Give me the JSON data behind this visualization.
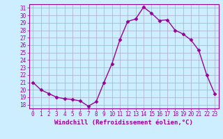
{
  "x": [
    0,
    1,
    2,
    3,
    4,
    5,
    6,
    7,
    8,
    9,
    10,
    11,
    12,
    13,
    14,
    15,
    16,
    17,
    18,
    19,
    20,
    21,
    22,
    23
  ],
  "y": [
    21,
    20,
    19.5,
    19,
    18.8,
    18.7,
    18.5,
    17.8,
    18.4,
    21,
    23.5,
    26.7,
    29.2,
    29.5,
    31.1,
    30.3,
    29.3,
    29.4,
    28,
    27.5,
    26.7,
    25.3,
    22,
    19.5
  ],
  "line_color": "#990099",
  "marker": "D",
  "marker_size": 2.5,
  "bg_color": "#cceeff",
  "grid_color": "#aaaacc",
  "xlabel": "Windchill (Refroidissement éolien,°C)",
  "xlim": [
    -0.5,
    23.5
  ],
  "ylim": [
    17.5,
    31.5
  ],
  "yticks": [
    18,
    19,
    20,
    21,
    22,
    23,
    24,
    25,
    26,
    27,
    28,
    29,
    30,
    31
  ],
  "xticks": [
    0,
    1,
    2,
    3,
    4,
    5,
    6,
    7,
    8,
    9,
    10,
    11,
    12,
    13,
    14,
    15,
    16,
    17,
    18,
    19,
    20,
    21,
    22,
    23
  ],
  "label_fontsize": 6.5,
  "tick_fontsize": 5.5
}
